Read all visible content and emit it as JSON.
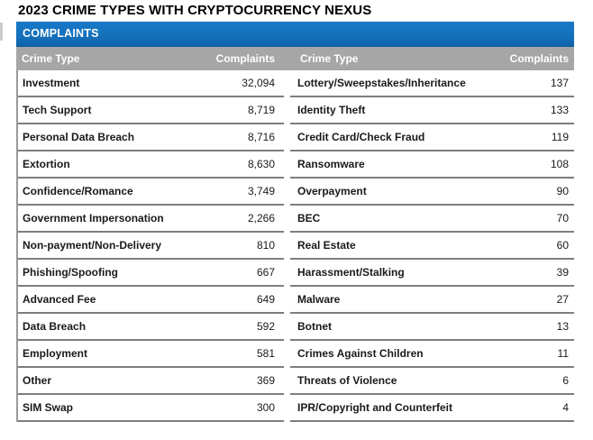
{
  "title": "2023 CRIME TYPES WITH CRYPTOCURRENCY NEXUS",
  "table": {
    "band_label": "COMPLAINTS",
    "headers": {
      "crime_type": "Crime Type",
      "complaints": "Complaints"
    },
    "left_rows": [
      {
        "name": "Investment",
        "value": "32,094"
      },
      {
        "name": "Tech Support",
        "value": "8,719"
      },
      {
        "name": "Personal Data Breach",
        "value": "8,716"
      },
      {
        "name": "Extortion",
        "value": "8,630"
      },
      {
        "name": "Confidence/Romance",
        "value": "3,749"
      },
      {
        "name": "Government Impersonation",
        "value": "2,266"
      },
      {
        "name": "Non-payment/Non-Delivery",
        "value": "810"
      },
      {
        "name": "Phishing/Spoofing",
        "value": "667"
      },
      {
        "name": "Advanced Fee",
        "value": "649"
      },
      {
        "name": "Data Breach",
        "value": "592"
      },
      {
        "name": "Employment",
        "value": "581"
      },
      {
        "name": "Other",
        "value": "369"
      },
      {
        "name": "SIM Swap",
        "value": "300"
      }
    ],
    "right_rows": [
      {
        "name": "Lottery/Sweepstakes/Inheritance",
        "value": "137"
      },
      {
        "name": "Identity Theft",
        "value": "133"
      },
      {
        "name": "Credit Card/Check Fraud",
        "value": "119"
      },
      {
        "name": "Ransomware",
        "value": "108"
      },
      {
        "name": "Overpayment",
        "value": "90"
      },
      {
        "name": "BEC",
        "value": "70"
      },
      {
        "name": "Real Estate",
        "value": "60"
      },
      {
        "name": "Harassment/Stalking",
        "value": "39"
      },
      {
        "name": "Malware",
        "value": "27"
      },
      {
        "name": "Botnet",
        "value": "13"
      },
      {
        "name": "Crimes Against Children",
        "value": "11"
      },
      {
        "name": "Threats of Violence",
        "value": "6"
      },
      {
        "name": "IPR/Copyright and Counterfeit",
        "value": "4"
      }
    ]
  },
  "colors": {
    "band_blue": "#1474c2",
    "header_gray": "#a6a6a6",
    "rule_gray": "#7e7e7e",
    "text_dark": "#1a1a1a"
  }
}
